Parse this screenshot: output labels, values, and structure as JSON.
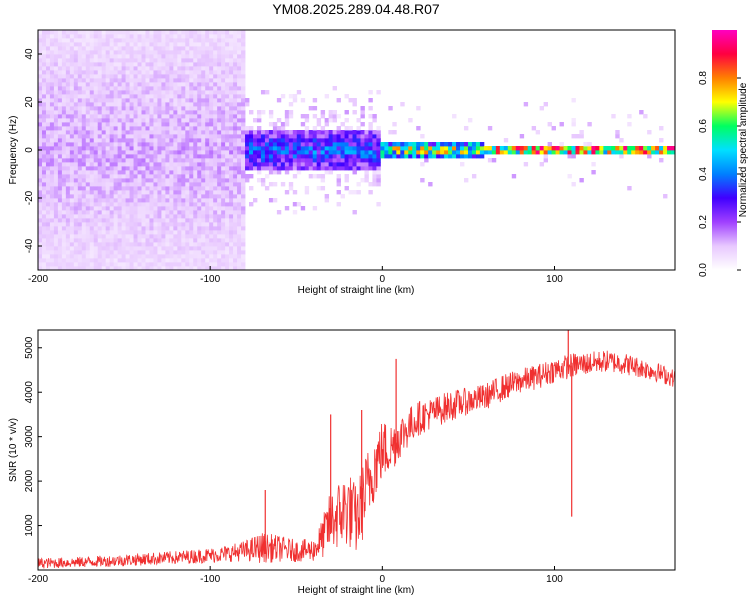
{
  "title": "YM08.2025.289.04.48.R07",
  "chart_data": [
    {
      "type": "heatmap",
      "title": "YM08.2025.289.04.48.R07",
      "xlabel": "Height of straight line (km)",
      "ylabel": "Frequency (Hz)",
      "xlim": [
        -200,
        170
      ],
      "ylim": [
        -50,
        50
      ],
      "xticks": [
        -200,
        -100,
        0,
        100
      ],
      "yticks": [
        -40,
        -20,
        0,
        20,
        40
      ],
      "colorbar": {
        "label": "Normalized spectral amplitude",
        "range": [
          0,
          1
        ],
        "ticks": [
          0.0,
          0.2,
          0.4,
          0.6,
          0.8
        ],
        "colormap": [
          "#ffffff",
          "#e8c8ff",
          "#a040ff",
          "#4000ff",
          "#0080ff",
          "#00e0ff",
          "#00ff60",
          "#ffff00",
          "#ff8000",
          "#ff0040",
          "#ff00c0"
        ]
      },
      "regions": [
        {
          "x_range": [
            -200,
            -80
          ],
          "freq_range": [
            -50,
            50
          ],
          "amplitude": 0.12,
          "description": "broadband scatter"
        },
        {
          "x_range": [
            -80,
            0
          ],
          "freq_range": [
            -8,
            8
          ],
          "amplitude": 0.35,
          "description": "noisy central band"
        },
        {
          "x_range": [
            0,
            60
          ],
          "freq_range": [
            -3,
            3
          ],
          "amplitude": 0.65,
          "description": "narrow band"
        },
        {
          "x_range": [
            60,
            170
          ],
          "freq_range": [
            -2,
            2
          ],
          "amplitude": 0.85,
          "description": "strong narrow band"
        }
      ]
    },
    {
      "type": "line",
      "xlabel": "Height of straight line (km)",
      "ylabel": "SNR (10 * v/v)",
      "xlim": [
        -200,
        170
      ],
      "ylim": [
        0,
        5400
      ],
      "xticks": [
        -200,
        -100,
        0,
        100
      ],
      "yticks": [
        1000,
        2000,
        3000,
        4000,
        5000
      ],
      "color": "#f03030",
      "series": [
        {
          "name": "SNR",
          "x": [
            -200,
            -180,
            -160,
            -140,
            -120,
            -100,
            -90,
            -80,
            -70,
            -60,
            -50,
            -40,
            -35,
            -30,
            -25,
            -20,
            -15,
            -10,
            -5,
            0,
            5,
            10,
            15,
            20,
            30,
            40,
            50,
            60,
            70,
            80,
            90,
            100,
            110,
            120,
            130,
            140,
            150,
            160,
            170
          ],
          "values": [
            150,
            170,
            200,
            240,
            280,
            330,
            370,
            430,
            500,
            480,
            430,
            450,
            700,
            1100,
            1250,
            1400,
            1100,
            1700,
            2300,
            2700,
            2750,
            3000,
            3200,
            3400,
            3550,
            3700,
            3800,
            3900,
            4100,
            4250,
            4350,
            4500,
            4600,
            4650,
            4700,
            4650,
            4550,
            4450,
            4300
          ],
          "spread": [
            120,
            120,
            130,
            140,
            150,
            170,
            190,
            230,
            350,
            300,
            250,
            260,
            450,
            700,
            800,
            900,
            800,
            900,
            800,
            700,
            600,
            500,
            450,
            400,
            350,
            350,
            300,
            300,
            300,
            280,
            280,
            280,
            280,
            260,
            250,
            250,
            230,
            220,
            200
          ]
        }
      ],
      "spikes": [
        {
          "x": -68,
          "value": 1800
        },
        {
          "x": -30,
          "value": 3500
        },
        {
          "x": -12,
          "value": 3600
        },
        {
          "x": 8,
          "value": 4750
        },
        {
          "x": 108,
          "value": 5400
        },
        {
          "x": 110,
          "value": 1200
        }
      ]
    }
  ]
}
